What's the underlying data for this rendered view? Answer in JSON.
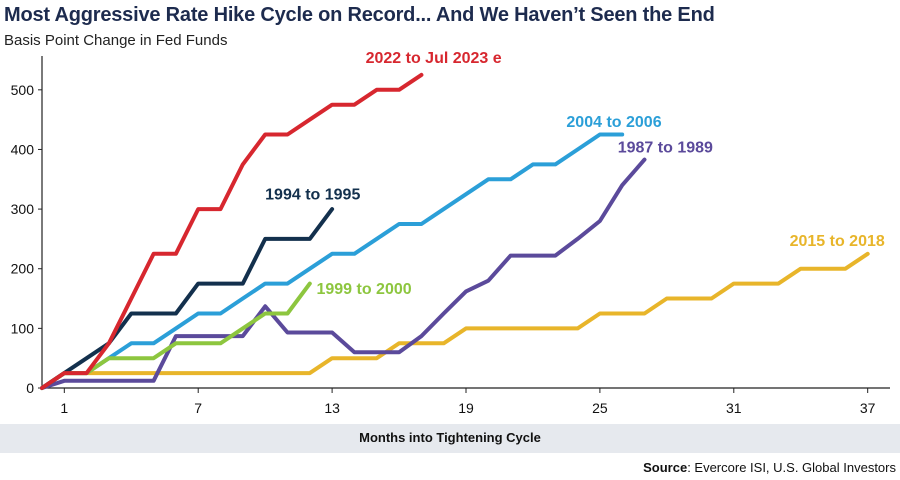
{
  "header": {
    "title": "Most Aggressive Rate Hike Cycle on Record... And We Haven’t Seen the End",
    "subtitle": "Basis Point Change in Fed Funds"
  },
  "footer": {
    "source_label": "Source",
    "source_text": ": Evercore ISI, U.S. Global Investors"
  },
  "chart_data": {
    "type": "line",
    "xlabel": "Months into Tightening Cycle",
    "ylabel": "",
    "xlim": [
      0,
      38
    ],
    "ylim": [
      0,
      550
    ],
    "xticks": [
      1,
      7,
      13,
      19,
      25,
      31,
      37
    ],
    "yticks": [
      0,
      100,
      200,
      300,
      400,
      500
    ],
    "grid": false,
    "legend": "inline labels",
    "series": [
      {
        "name": "2015 to 2018",
        "color": "#e8b52a",
        "x": [
          0,
          1,
          2,
          3,
          4,
          5,
          6,
          7,
          8,
          9,
          10,
          11,
          12,
          13,
          14,
          15,
          16,
          17,
          18,
          19,
          20,
          21,
          22,
          23,
          24,
          25,
          26,
          27,
          28,
          29,
          30,
          31,
          32,
          33,
          34,
          35,
          36,
          37
        ],
        "values": [
          0,
          25,
          25,
          25,
          25,
          25,
          25,
          25,
          25,
          25,
          25,
          25,
          25,
          50,
          50,
          50,
          75,
          75,
          75,
          100,
          100,
          100,
          100,
          100,
          100,
          125,
          125,
          125,
          150,
          150,
          150,
          175,
          175,
          175,
          200,
          200,
          200,
          225
        ],
        "label_x": 33.5,
        "label_y": 238
      },
      {
        "name": "1987 to 1989",
        "color": "#5b4a9b",
        "x": [
          0,
          1,
          2,
          3,
          4,
          5,
          6,
          7,
          8,
          9,
          10,
          11,
          12,
          13,
          14,
          15,
          16,
          17,
          18,
          19,
          20,
          21,
          22,
          23,
          24,
          25,
          26,
          27
        ],
        "values": [
          0,
          12,
          12,
          12,
          12,
          12,
          87,
          87,
          87,
          87,
          137,
          93,
          93,
          93,
          60,
          60,
          60,
          87,
          125,
          162,
          180,
          222,
          222,
          222,
          250,
          280,
          340,
          383
        ],
        "label_x": 25.8,
        "label_y": 395
      },
      {
        "name": "2004 to 2006",
        "color": "#2b9fd8",
        "x": [
          0,
          1,
          2,
          3,
          4,
          5,
          6,
          7,
          8,
          9,
          10,
          11,
          12,
          13,
          14,
          15,
          16,
          17,
          18,
          19,
          20,
          21,
          22,
          23,
          24,
          25,
          26
        ],
        "values": [
          0,
          25,
          25,
          50,
          75,
          75,
          100,
          125,
          125,
          150,
          175,
          175,
          200,
          225,
          225,
          250,
          275,
          275,
          300,
          325,
          350,
          350,
          375,
          375,
          400,
          425,
          425
        ],
        "label_x": 23.5,
        "label_y": 438
      },
      {
        "name": "1999 to 2000",
        "color": "#8dc63f",
        "x": [
          0,
          1,
          2,
          3,
          4,
          5,
          6,
          7,
          8,
          9,
          10,
          11,
          12
        ],
        "values": [
          0,
          25,
          25,
          50,
          50,
          50,
          75,
          75,
          75,
          100,
          125,
          125,
          175
        ],
        "label_x": 12.3,
        "label_y": 158
      },
      {
        "name": "1994 to 1995",
        "color": "#13304d",
        "x": [
          0,
          1,
          2,
          3,
          4,
          5,
          6,
          7,
          8,
          9,
          10,
          11,
          12,
          13
        ],
        "values": [
          0,
          25,
          50,
          75,
          125,
          125,
          125,
          175,
          175,
          175,
          250,
          250,
          250,
          300
        ],
        "label_x": 10.0,
        "label_y": 316
      },
      {
        "name": "2022 to Jul 2023 e",
        "color": "#d7272f",
        "x": [
          0,
          1,
          2,
          3,
          4,
          5,
          6,
          7,
          8,
          9,
          10,
          11,
          12,
          13,
          14,
          15,
          16,
          17
        ],
        "values": [
          0,
          25,
          25,
          75,
          150,
          225,
          225,
          300,
          300,
          375,
          425,
          425,
          450,
          475,
          475,
          500,
          500,
          525
        ],
        "label_x": 14.5,
        "label_y": 545
      }
    ]
  }
}
